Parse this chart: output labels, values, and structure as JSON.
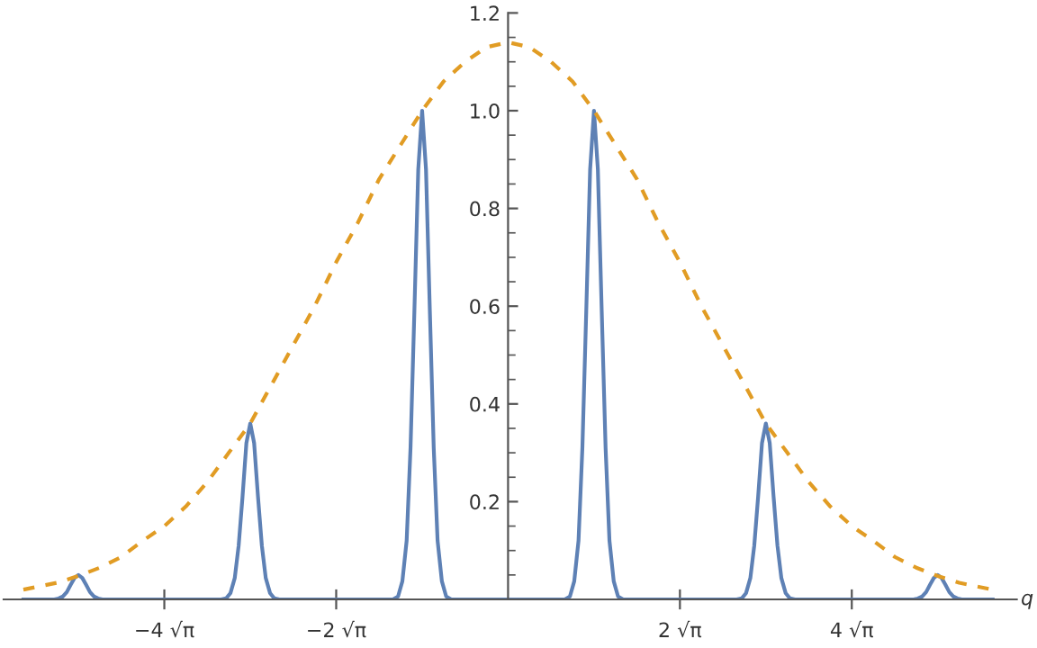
{
  "chart_data": {
    "type": "line",
    "xlabel": "q",
    "xlim": [
      -5.87,
      5.92
    ],
    "ylim": [
      0,
      1.2
    ],
    "xticks": [
      {
        "value": -4,
        "label": "−4 √π"
      },
      {
        "value": -2,
        "label": "−2 √π"
      },
      {
        "value": 2,
        "label": "2 √π"
      },
      {
        "value": 4,
        "label": "4 √π"
      }
    ],
    "yticks": [
      0.2,
      0.4,
      0.6,
      0.8,
      {
        "value": 1.0,
        "label": "1.0"
      },
      1.2
    ],
    "grid": false,
    "legend": false,
    "series": [
      {
        "color": "#5e81b5",
        "line_style": "solid",
        "x": [
          -5.64,
          -5.34,
          -5.28,
          -5.23,
          -5.18,
          -5.135,
          -5.09,
          -5.045,
          -5,
          -4.955,
          -4.91,
          -4.865,
          -4.82,
          -4.77,
          -4.72,
          -4.66,
          -3.34,
          -3.28,
          -3.23,
          -3.18,
          -3.135,
          -3.09,
          -3.045,
          -3,
          -2.955,
          -2.91,
          -2.865,
          -2.82,
          -2.77,
          -2.72,
          -2.66,
          -1.34,
          -1.28,
          -1.23,
          -1.18,
          -1.135,
          -1.09,
          -1.045,
          -1,
          -0.955,
          -0.91,
          -0.865,
          -0.82,
          -0.77,
          -0.72,
          -0.66,
          0.66,
          0.72,
          0.77,
          0.82,
          0.865,
          0.91,
          0.955,
          1,
          1.045,
          1.09,
          1.135,
          1.18,
          1.23,
          1.28,
          1.34,
          2.66,
          2.72,
          2.77,
          2.82,
          2.865,
          2.91,
          2.955,
          3,
          3.045,
          3.09,
          3.135,
          3.18,
          3.23,
          3.28,
          3.34,
          4.66,
          4.72,
          4.77,
          4.82,
          4.865,
          4.91,
          4.955,
          5,
          5.045,
          5.09,
          5.135,
          5.18,
          5.23,
          5.28,
          5.34,
          5.64
        ],
        "values": [
          0,
          0,
          0,
          0.002,
          0.006,
          0.015,
          0.03,
          0.044,
          0.05,
          0.044,
          0.03,
          0.015,
          0.006,
          0.002,
          0,
          0,
          0,
          0.002,
          0.013,
          0.044,
          0.11,
          0.21,
          0.32,
          0.36,
          0.32,
          0.21,
          0.11,
          0.044,
          0.013,
          0.002,
          0,
          0,
          0.006,
          0.037,
          0.12,
          0.31,
          0.59,
          0.88,
          1.0,
          0.88,
          0.59,
          0.31,
          0.12,
          0.037,
          0.006,
          0,
          0,
          0.006,
          0.037,
          0.12,
          0.31,
          0.59,
          0.88,
          1.0,
          0.88,
          0.59,
          0.31,
          0.12,
          0.037,
          0.006,
          0,
          0,
          0.002,
          0.013,
          0.044,
          0.11,
          0.21,
          0.32,
          0.36,
          0.32,
          0.21,
          0.11,
          0.044,
          0.013,
          0.002,
          0,
          0,
          0,
          0.002,
          0.006,
          0.015,
          0.03,
          0.044,
          0.05,
          0.044,
          0.03,
          0.015,
          0.006,
          0.002,
          0,
          0,
          0
        ]
      },
      {
        "color": "#e19c24",
        "line_style": "dashed",
        "x": [
          -5.64,
          -5.5,
          -5.25,
          -5,
          -4.75,
          -4.5,
          -4.25,
          -4,
          -3.75,
          -3.5,
          -3.25,
          -3,
          -2.75,
          -2.5,
          -2.25,
          -2,
          -1.75,
          -1.5,
          -1.25,
          -1,
          -0.75,
          -0.5,
          -0.25,
          0,
          0.25,
          0.5,
          0.75,
          1,
          1.25,
          1.5,
          1.75,
          2,
          2.25,
          2.5,
          2.75,
          3,
          3.25,
          3.5,
          3.75,
          4,
          4.25,
          4.5,
          4.75,
          5,
          5.25,
          5.5,
          5.64
        ],
        "values": [
          0.02,
          0.025,
          0.034,
          0.048,
          0.065,
          0.087,
          0.12,
          0.15,
          0.19,
          0.24,
          0.3,
          0.36,
          0.44,
          0.52,
          0.6,
          0.69,
          0.77,
          0.86,
          0.93,
          1.0,
          1.06,
          1.1,
          1.13,
          1.14,
          1.13,
          1.1,
          1.06,
          1.0,
          0.93,
          0.86,
          0.77,
          0.69,
          0.6,
          0.52,
          0.44,
          0.36,
          0.3,
          0.24,
          0.19,
          0.15,
          0.12,
          0.087,
          0.065,
          0.048,
          0.034,
          0.025,
          0.02
        ]
      }
    ]
  }
}
